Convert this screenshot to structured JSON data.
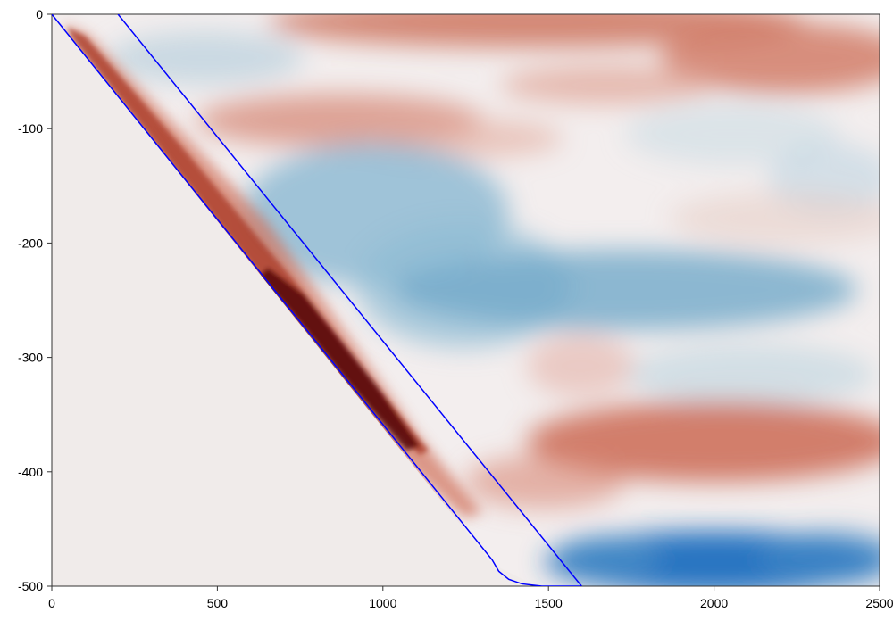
{
  "chart_data": {
    "type": "heatmap",
    "title": "",
    "xlabel": "",
    "ylabel": "",
    "xlim": [
      0,
      2500
    ],
    "ylim": [
      -500,
      0
    ],
    "x_ticks": [
      0,
      500,
      1000,
      1500,
      2000,
      2500
    ],
    "y_ticks": [
      0,
      -100,
      -200,
      -300,
      -400,
      -500
    ],
    "x_tick_labels": [
      "0",
      "500",
      "1000",
      "1500",
      "2000",
      "2500"
    ],
    "y_tick_labels": [
      "0",
      "-100",
      "-200",
      "-300",
      "-400",
      "-500"
    ],
    "colormap": {
      "negative": "#0b5fb8",
      "neutral": "#f1ecec",
      "positive": "#c2573e",
      "extreme": "#4a0709"
    },
    "masked_region_color": "#f0ebea",
    "series": [
      {
        "type": "line",
        "color": "#0000ff",
        "points": [
          [
            0,
            0
          ],
          [
            1330,
            -477
          ],
          [
            1350,
            -487
          ],
          [
            1380,
            -494
          ],
          [
            1420,
            -498
          ],
          [
            1480,
            -500
          ],
          [
            1600,
            -500
          ]
        ]
      },
      {
        "type": "line",
        "color": "#0000ff",
        "points": [
          [
            200,
            0
          ],
          [
            1600,
            -500
          ]
        ]
      }
    ]
  }
}
